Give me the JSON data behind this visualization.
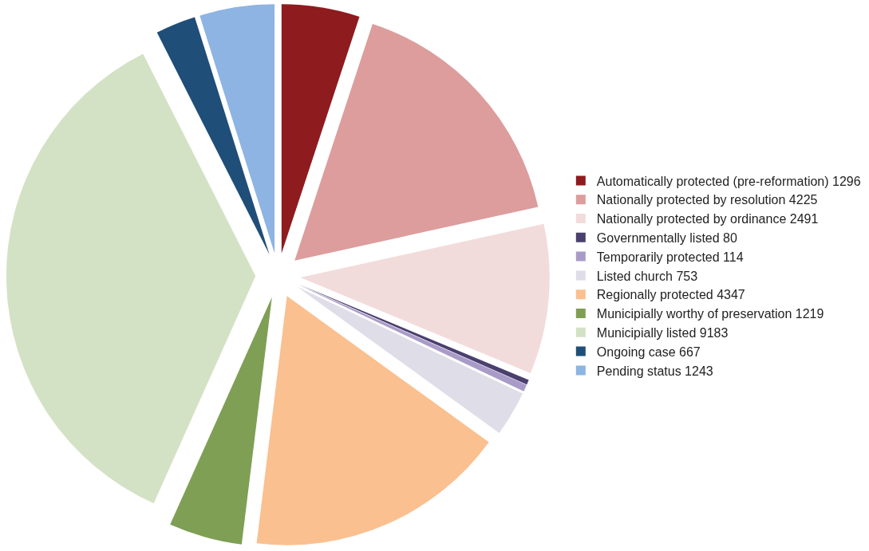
{
  "chart_data": {
    "type": "pie",
    "categories": [
      "Automatically protected (pre-reformation) 1296",
      "Nationally protected by resolution 4225",
      "Nationally protected by ordinance 2491",
      "Governmentally listed 80",
      "Temporarily protected 114",
      "Listed church 753",
      "Regionally protected 4347",
      "Municipially worthy of preservation 1219",
      "Municipially listed 9183",
      "Ongoing case 667",
      "Pending status 1243"
    ],
    "values": [
      1296,
      4225,
      2491,
      80,
      114,
      753,
      4347,
      1219,
      9183,
      667,
      1243
    ],
    "colors": [
      "#8e1b1e",
      "#dc9d9c",
      "#f2dcdb",
      "#4b3f6e",
      "#a99bc8",
      "#dedde8",
      "#fac090",
      "#7f9f55",
      "#d3e2c4",
      "#1f4e79",
      "#8db4e2"
    ],
    "legend": "right"
  }
}
